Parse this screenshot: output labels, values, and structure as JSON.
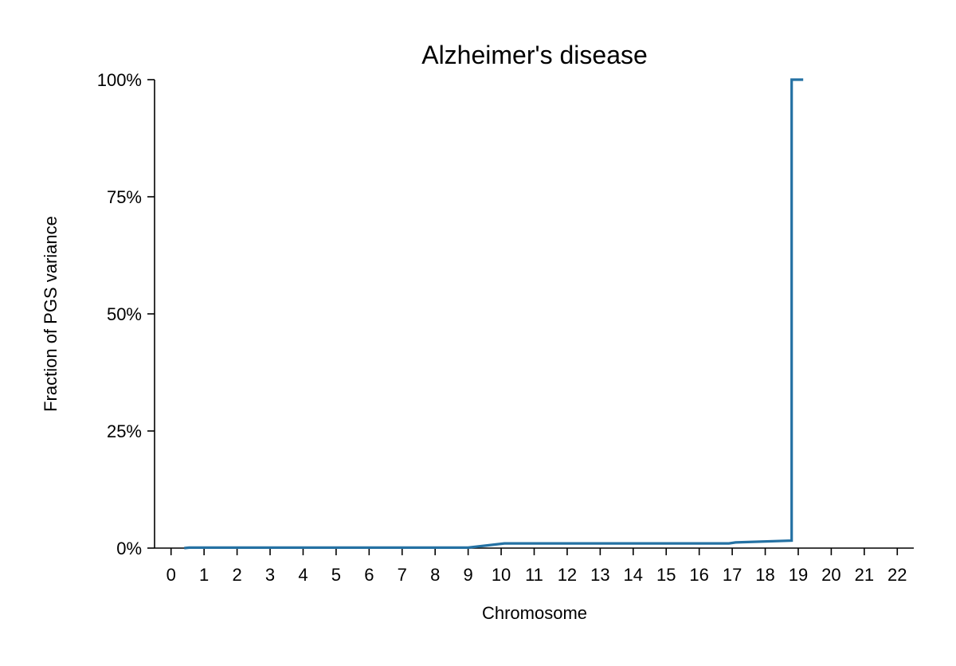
{
  "chart_data": {
    "type": "line",
    "title": "Alzheimer's disease",
    "xlabel": "Chromosome",
    "ylabel": "Fraction of PGS variance",
    "xlim": [
      -0.5,
      22.5
    ],
    "ylim": [
      0,
      1
    ],
    "x_ticks": [
      "0",
      "1",
      "2",
      "3",
      "4",
      "5",
      "6",
      "7",
      "8",
      "9",
      "10",
      "11",
      "12",
      "13",
      "14",
      "15",
      "16",
      "17",
      "18",
      "19",
      "20",
      "21",
      "22"
    ],
    "y_ticks": [
      {
        "value": 0,
        "label": "0%"
      },
      {
        "value": 0.25,
        "label": "25%"
      },
      {
        "value": 0.5,
        "label": "50%"
      },
      {
        "value": 0.75,
        "label": "75%"
      },
      {
        "value": 1,
        "label": "100%"
      }
    ],
    "grid": false,
    "line_color": "#2471a3",
    "series": [
      {
        "x": [
          0.4,
          0.55,
          9.0,
          10.1,
          16.9,
          17.1,
          18.8,
          18.8,
          19.15
        ],
        "y": [
          0,
          0.001,
          0.001,
          0.01,
          0.01,
          0.012,
          0.016,
          1.0,
          1.0
        ]
      }
    ]
  }
}
